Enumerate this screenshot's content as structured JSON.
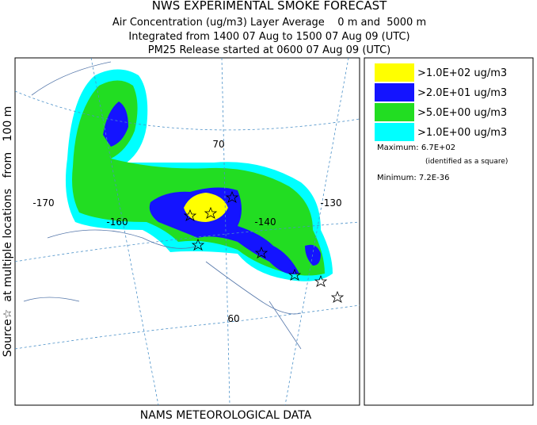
{
  "header": {
    "title": "NWS EXPERIMENTAL SMOKE FORECAST",
    "lines": [
      "Air Concentration (ug/m3) Layer Average    0 m and  5000 m",
      "Integrated from 1400 07 Aug to 1500 07 Aug 09 (UTC)",
      "PM25 Release started at 0600 07 Aug 09 (UTC)"
    ]
  },
  "side_label": "Source☆  at multiple locations   from   100 m",
  "footer": "NAMS METEOROLOGICAL DATA",
  "legend": {
    "items": [
      {
        "label": ">1.0E+02 ug/m3",
        "color": "#ffff00"
      },
      {
        "label": ">2.0E+01 ug/m3",
        "color": "#1414ff"
      },
      {
        "label": ">5.0E+00 ug/m3",
        "color": "#22dd22"
      },
      {
        "label": ">1.0E+00 ug/m3",
        "color": "#00ffff"
      }
    ],
    "maximum": "Maximum: 6.7E+02",
    "max_note": "(identified as a square)",
    "minimum": "Minimum: 7.2E-36"
  },
  "map": {
    "labels": [
      "-170",
      "-160",
      "70",
      "-140",
      "-130",
      "60"
    ]
  }
}
